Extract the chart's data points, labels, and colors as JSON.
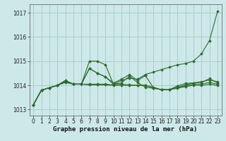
{
  "background_color": "#cce8e8",
  "grid_color": "#aacccc",
  "line_color": "#2d6b2d",
  "marker_color": "#2d6b2d",
  "xlabel": "Graphe pression niveau de la mer (hPa)",
  "xlabel_fontsize": 6.5,
  "tick_fontsize": 5.5,
  "xlim": [
    -0.5,
    23.5
  ],
  "ylim": [
    1012.75,
    1017.35
  ],
  "yticks": [
    1013,
    1014,
    1015,
    1016,
    1017
  ],
  "xticks": [
    0,
    1,
    2,
    3,
    4,
    5,
    6,
    7,
    8,
    9,
    10,
    11,
    12,
    13,
    14,
    15,
    16,
    17,
    18,
    19,
    20,
    21,
    22,
    23
  ],
  "lines": [
    [
      1013.2,
      1013.8,
      1013.9,
      1014.0,
      1014.15,
      1014.05,
      1014.05,
      1015.0,
      1015.0,
      1014.85,
      1014.05,
      1014.2,
      1014.3,
      1014.25,
      1014.45,
      1014.55,
      1014.65,
      1014.75,
      1014.85,
      1014.9,
      1015.0,
      1015.3,
      1015.85,
      1017.05
    ],
    [
      1013.2,
      1013.8,
      1013.9,
      1014.0,
      1014.2,
      1014.05,
      1014.05,
      1014.7,
      1014.5,
      1014.35,
      1014.1,
      1014.25,
      1014.45,
      1014.2,
      1014.4,
      1013.9,
      1013.82,
      1013.82,
      1013.98,
      1014.08,
      1014.1,
      1014.12,
      1014.28,
      1014.1
    ],
    [
      1013.2,
      1013.8,
      1013.9,
      1014.0,
      1014.2,
      1014.05,
      1014.05,
      1014.7,
      1014.5,
      1014.35,
      1014.05,
      1014.1,
      1014.38,
      1014.12,
      1013.92,
      1013.88,
      1013.82,
      1013.82,
      1013.92,
      1014.02,
      1014.1,
      1014.15,
      1014.22,
      1014.15
    ],
    [
      1013.2,
      1013.8,
      1013.9,
      1014.0,
      1014.15,
      1014.05,
      1014.05,
      1014.05,
      1014.05,
      1014.05,
      1014.02,
      1014.05,
      1014.02,
      1014.0,
      1014.0,
      1013.92,
      1013.82,
      1013.82,
      1013.92,
      1013.98,
      1014.05,
      1014.05,
      1014.12,
      1014.05
    ],
    [
      1013.2,
      1013.8,
      1013.9,
      1014.0,
      1014.12,
      1014.05,
      1014.05,
      1014.02,
      1014.02,
      1014.02,
      1014.0,
      1014.0,
      1014.0,
      1014.0,
      1014.0,
      1013.9,
      1013.82,
      1013.82,
      1013.88,
      1013.95,
      1014.0,
      1014.0,
      1014.05,
      1014.0
    ]
  ]
}
